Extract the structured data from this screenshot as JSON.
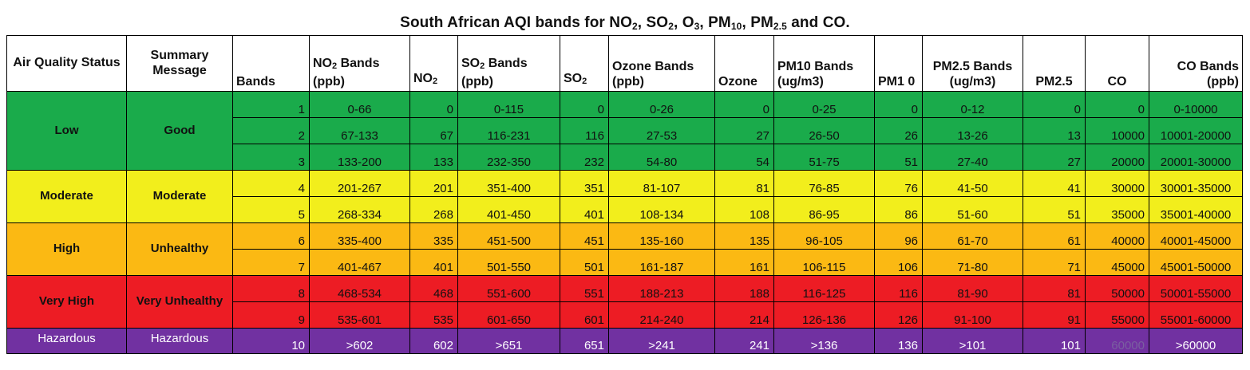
{
  "title": {
    "main": "South African AQI bands for NO",
    "no2_sub": "2",
    "sep1": ", SO",
    "so2_sub": "2",
    "sep2": ", O",
    "o3_sub": "3",
    "sep3": ", PM",
    "pm10_sub": "10",
    "sep4": ", PM",
    "pm25_sub": "2.5",
    "tail": " and CO."
  },
  "headers": {
    "status": "Air Quality Status",
    "summary": "Summary Message",
    "bands": "Bands",
    "no2_bands_a": "NO",
    "no2_bands_sub": "2",
    "no2_bands_b": " Bands (ppb)",
    "no2_a": "NO",
    "no2_sub": "2",
    "so2_bands_a": "SO",
    "so2_bands_sub": "2",
    "so2_bands_b": " Bands (ppb)",
    "so2_a": "SO",
    "so2_sub": "2",
    "ozone_bands": "Ozone Bands (ppb)",
    "ozone": "Ozone",
    "pm10_bands": "PM10 Bands (ug/m3)",
    "pm10": "PM1 0",
    "pm25_bands": "PM2.5 Bands (ug/m3)",
    "pm25": "PM2.5",
    "co": "CO",
    "co_bands": "CO Bands (ppb)"
  },
  "colors": {
    "low": "#1aab4b",
    "moderate": "#f2ee1c",
    "high": "#fbb913",
    "very_high": "#ed1c24",
    "hazardous": "#7131a1"
  },
  "groups": [
    {
      "status": "Low",
      "summary": "Good",
      "color_key": "low"
    },
    {
      "status": "Moderate",
      "summary": "Moderate",
      "color_key": "moderate"
    },
    {
      "status": "High",
      "summary": "Unhealthy",
      "color_key": "high"
    },
    {
      "status": "Very High",
      "summary": "Very Unhealthy",
      "color_key": "very_high"
    },
    {
      "status": "Hazardous",
      "summary": "Hazardous",
      "color_key": "hazardous"
    }
  ],
  "rows": [
    {
      "band": "1",
      "no2_band": "0-66",
      "no2": "0",
      "so2_band": "0-115",
      "so2": "0",
      "o3_band": "0-26",
      "o3": "0",
      "pm10_band": "0-25",
      "pm10": "0",
      "pm25_band": "0-12",
      "pm25": "0",
      "co": "0",
      "co_band": "0-10000"
    },
    {
      "band": "2",
      "no2_band": "67-133",
      "no2": "67",
      "so2_band": "116-231",
      "so2": "116",
      "o3_band": "27-53",
      "o3": "27",
      "pm10_band": "26-50",
      "pm10": "26",
      "pm25_band": "13-26",
      "pm25": "13",
      "co": "10000",
      "co_band": "10001-20000"
    },
    {
      "band": "3",
      "no2_band": "133-200",
      "no2": "133",
      "so2_band": "232-350",
      "so2": "232",
      "o3_band": "54-80",
      "o3": "54",
      "pm10_band": "51-75",
      "pm10": "51",
      "pm25_band": "27-40",
      "pm25": "27",
      "co": "20000",
      "co_band": "20001-30000"
    },
    {
      "band": "4",
      "no2_band": "201-267",
      "no2": "201",
      "so2_band": "351-400",
      "so2": "351",
      "o3_band": "81-107",
      "o3": "81",
      "pm10_band": "76-85",
      "pm10": "76",
      "pm25_band": "41-50",
      "pm25": "41",
      "co": "30000",
      "co_band": "30001-35000"
    },
    {
      "band": "5",
      "no2_band": "268-334",
      "no2": "268",
      "so2_band": "401-450",
      "so2": "401",
      "o3_band": "108-134",
      "o3": "108",
      "pm10_band": "86-95",
      "pm10": "86",
      "pm25_band": "51-60",
      "pm25": "51",
      "co": "35000",
      "co_band": "35001-40000"
    },
    {
      "band": "6",
      "no2_band": "335-400",
      "no2": "335",
      "so2_band": "451-500",
      "so2": "451",
      "o3_band": "135-160",
      "o3": "135",
      "pm10_band": "96-105",
      "pm10": "96",
      "pm25_band": "61-70",
      "pm25": "61",
      "co": "40000",
      "co_band": "40001-45000"
    },
    {
      "band": "7",
      "no2_band": "401-467",
      "no2": "401",
      "so2_band": "501-550",
      "so2": "501",
      "o3_band": "161-187",
      "o3": "161",
      "pm10_band": "106-115",
      "pm10": "106",
      "pm25_band": "71-80",
      "pm25": "71",
      "co": "45000",
      "co_band": "45001-50000"
    },
    {
      "band": "8",
      "no2_band": "468-534",
      "no2": "468",
      "so2_band": "551-600",
      "so2": "551",
      "o3_band": "188-213",
      "o3": "188",
      "pm10_band": "116-125",
      "pm10": "116",
      "pm25_band": "81-90",
      "pm25": "81",
      "co": "50000",
      "co_band": "50001-55000"
    },
    {
      "band": "9",
      "no2_band": "535-601",
      "no2": "535",
      "so2_band": "601-650",
      "so2": "601",
      "o3_band": "214-240",
      "o3": "214",
      "pm10_band": "126-136",
      "pm10": "126",
      "pm25_band": "91-100",
      "pm25": "91",
      "co": "55000",
      "co_band": "55001-60000"
    },
    {
      "band": "10",
      "no2_band": ">602",
      "no2": "602",
      "so2_band": ">651",
      "so2": "651",
      "o3_band": ">241",
      "o3": "241",
      "pm10_band": ">136",
      "pm10": "136",
      "pm25_band": ">101",
      "pm25": "101",
      "co": "60000",
      "co_band": ">60000"
    }
  ]
}
